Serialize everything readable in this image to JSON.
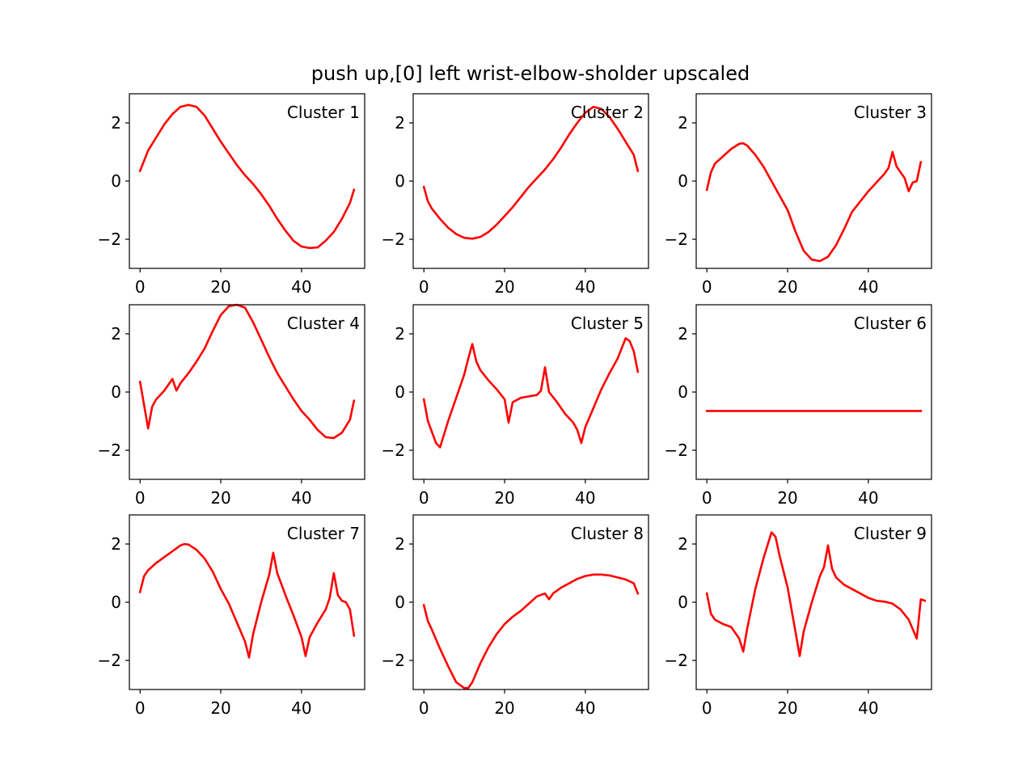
{
  "figure": {
    "title": "push up,[0] left wrist-elbow-sholder upscaled",
    "line_color": "#ff0000"
  },
  "chart_data": [
    {
      "type": "line",
      "label": "Cluster 1",
      "x": [
        0,
        2,
        4,
        6,
        8,
        10,
        12,
        14,
        16,
        18,
        20,
        22,
        24,
        26,
        28,
        30,
        32,
        34,
        36,
        38,
        40,
        42,
        44,
        46,
        48,
        50,
        52,
        53
      ],
      "y": [
        0.35,
        1.05,
        1.5,
        1.95,
        2.3,
        2.55,
        2.62,
        2.55,
        2.25,
        1.8,
        1.35,
        0.95,
        0.55,
        0.2,
        -0.1,
        -0.45,
        -0.85,
        -1.3,
        -1.7,
        -2.05,
        -2.25,
        -2.3,
        -2.28,
        -2.05,
        -1.75,
        -1.3,
        -0.75,
        -0.3
      ],
      "xlim": [
        -2.65,
        55.65
      ],
      "ylim": [
        -3,
        3
      ],
      "xticks": [
        0,
        20,
        40
      ],
      "yticks": [
        -2,
        0,
        2
      ]
    },
    {
      "type": "line",
      "label": "Cluster 2",
      "x": [
        0,
        1,
        2,
        4,
        6,
        8,
        10,
        12,
        14,
        16,
        18,
        20,
        22,
        24,
        26,
        28,
        30,
        32,
        34,
        36,
        38,
        40,
        42,
        44,
        46,
        48,
        50,
        52,
        53
      ],
      "y": [
        -0.2,
        -0.7,
        -0.95,
        -1.3,
        -1.6,
        -1.82,
        -1.95,
        -1.98,
        -1.92,
        -1.75,
        -1.5,
        -1.2,
        -0.9,
        -0.55,
        -0.2,
        0.1,
        0.4,
        0.75,
        1.15,
        1.6,
        2.0,
        2.35,
        2.55,
        2.48,
        2.2,
        1.8,
        1.35,
        0.9,
        0.35
      ],
      "xlim": [
        -2.65,
        55.65
      ],
      "ylim": [
        -3,
        3
      ],
      "xticks": [
        0,
        20,
        40
      ],
      "yticks": [
        -2,
        0,
        2
      ]
    },
    {
      "type": "line",
      "label": "Cluster 3",
      "x": [
        0,
        1,
        2,
        4,
        6,
        8,
        9,
        10,
        12,
        14,
        16,
        18,
        20,
        22,
        24,
        26,
        28,
        30,
        32,
        34,
        36,
        38,
        40,
        42,
        44,
        45,
        46,
        47,
        48,
        49,
        50,
        51,
        52,
        53
      ],
      "y": [
        -0.3,
        0.3,
        0.6,
        0.85,
        1.1,
        1.28,
        1.3,
        1.22,
        0.9,
        0.5,
        0.0,
        -0.5,
        -1.0,
        -1.75,
        -2.4,
        -2.7,
        -2.75,
        -2.6,
        -2.2,
        -1.65,
        -1.05,
        -0.7,
        -0.35,
        -0.05,
        0.25,
        0.45,
        1.0,
        0.5,
        0.3,
        0.1,
        -0.35,
        -0.05,
        0.0,
        0.65
      ],
      "xlim": [
        -2.65,
        55.65
      ],
      "ylim": [
        -3,
        3
      ],
      "xticks": [
        0,
        20,
        40
      ],
      "yticks": [
        -2,
        0,
        2
      ]
    },
    {
      "type": "line",
      "label": "Cluster 4",
      "x": [
        0,
        2,
        3,
        4,
        6,
        8,
        9,
        10,
        12,
        14,
        16,
        18,
        20,
        22,
        24,
        26,
        28,
        30,
        32,
        34,
        36,
        38,
        40,
        42,
        44,
        46,
        48,
        50,
        52,
        53
      ],
      "y": [
        0.35,
        -1.25,
        -0.5,
        -0.25,
        0.05,
        0.45,
        0.05,
        0.3,
        0.65,
        1.05,
        1.5,
        2.1,
        2.65,
        2.95,
        3.0,
        2.9,
        2.4,
        1.8,
        1.2,
        0.65,
        0.2,
        -0.25,
        -0.65,
        -0.95,
        -1.3,
        -1.55,
        -1.58,
        -1.4,
        -0.95,
        -0.3
      ],
      "xlim": [
        -2.65,
        55.65
      ],
      "ylim": [
        -3,
        3
      ],
      "xticks": [
        0,
        20,
        40
      ],
      "yticks": [
        -2,
        0,
        2
      ]
    },
    {
      "type": "line",
      "label": "Cluster 5",
      "x": [
        0,
        1,
        3,
        4,
        6,
        8,
        10,
        11,
        12,
        13,
        14,
        16,
        18,
        20,
        21,
        22,
        24,
        26,
        28,
        29,
        30,
        31,
        33,
        35,
        37,
        38,
        39,
        40,
        42,
        44,
        46,
        48,
        50,
        51,
        52,
        53
      ],
      "y": [
        -0.25,
        -1.0,
        -1.75,
        -1.9,
        -1.0,
        -0.2,
        0.6,
        1.15,
        1.65,
        1.05,
        0.75,
        0.4,
        0.1,
        -0.25,
        -1.05,
        -0.35,
        -0.2,
        -0.15,
        -0.1,
        0.05,
        0.85,
        0.0,
        -0.35,
        -0.75,
        -1.05,
        -1.3,
        -1.75,
        -1.2,
        -0.55,
        0.1,
        0.65,
        1.15,
        1.85,
        1.75,
        1.4,
        0.7
      ],
      "xlim": [
        -2.65,
        55.65
      ],
      "ylim": [
        -3,
        3
      ],
      "xticks": [
        0,
        20,
        40
      ],
      "yticks": [
        -2,
        0,
        2
      ]
    },
    {
      "type": "line",
      "label": "Cluster 6",
      "x": [
        0,
        53
      ],
      "y": [
        -0.65,
        -0.65
      ],
      "xlim": [
        -2.65,
        55.65
      ],
      "ylim": [
        -3,
        3
      ],
      "xticks": [
        0,
        20,
        40
      ],
      "yticks": [
        -2,
        0,
        2
      ]
    },
    {
      "type": "line",
      "label": "Cluster 7",
      "x": [
        0,
        1,
        2,
        4,
        6,
        8,
        10,
        11,
        12,
        14,
        16,
        18,
        20,
        22,
        24,
        26,
        27,
        28,
        30,
        32,
        33,
        34,
        36,
        38,
        40,
        41,
        42,
        44,
        46,
        47,
        48,
        49,
        50,
        51,
        52,
        53
      ],
      "y": [
        0.35,
        0.9,
        1.1,
        1.35,
        1.55,
        1.75,
        1.95,
        2.0,
        1.98,
        1.8,
        1.5,
        1.05,
        0.45,
        -0.05,
        -0.7,
        -1.35,
        -1.9,
        -1.1,
        0.0,
        0.95,
        1.7,
        1.0,
        0.25,
        -0.45,
        -1.2,
        -1.85,
        -1.2,
        -0.7,
        -0.25,
        0.15,
        1.0,
        0.25,
        0.05,
        0.0,
        -0.25,
        -1.15
      ],
      "xlim": [
        -2.65,
        55.65
      ],
      "ylim": [
        -3,
        3
      ],
      "xticks": [
        0,
        20,
        40
      ],
      "yticks": [
        -2,
        0,
        2
      ]
    },
    {
      "type": "line",
      "label": "Cluster 8",
      "x": [
        0,
        1,
        2,
        4,
        6,
        8,
        10,
        11,
        12,
        14,
        16,
        18,
        20,
        22,
        24,
        26,
        28,
        30,
        31,
        32,
        34,
        36,
        38,
        40,
        42,
        44,
        46,
        48,
        50,
        52,
        53
      ],
      "y": [
        -0.1,
        -0.65,
        -0.95,
        -1.6,
        -2.2,
        -2.75,
        -2.95,
        -2.95,
        -2.75,
        -2.1,
        -1.55,
        -1.1,
        -0.75,
        -0.5,
        -0.3,
        -0.05,
        0.2,
        0.3,
        0.1,
        0.3,
        0.5,
        0.65,
        0.8,
        0.9,
        0.95,
        0.95,
        0.92,
        0.85,
        0.78,
        0.65,
        0.3
      ],
      "xlim": [
        -2.65,
        55.65
      ],
      "ylim": [
        -3,
        3
      ],
      "xticks": [
        0,
        20,
        40
      ],
      "yticks": [
        -2,
        0,
        2
      ]
    },
    {
      "type": "line",
      "label": "Cluster 9",
      "x": [
        0,
        1,
        2,
        4,
        6,
        8,
        9,
        10,
        12,
        14,
        16,
        17,
        18,
        20,
        22,
        23,
        24,
        26,
        28,
        29,
        30,
        31,
        32,
        34,
        36,
        38,
        40,
        42,
        44,
        46,
        48,
        50,
        52,
        53,
        54
      ],
      "y": [
        0.3,
        -0.4,
        -0.6,
        -0.75,
        -0.85,
        -1.25,
        -1.7,
        -0.9,
        0.45,
        1.5,
        2.4,
        2.25,
        1.6,
        0.5,
        -1.05,
        -1.85,
        -1.0,
        0.0,
        0.9,
        1.2,
        1.95,
        1.15,
        0.85,
        0.6,
        0.45,
        0.3,
        0.15,
        0.05,
        0.02,
        -0.05,
        -0.25,
        -0.6,
        -1.25,
        0.1,
        0.05
      ],
      "xlim": [
        -2.65,
        55.65
      ],
      "ylim": [
        -3,
        3
      ],
      "xticks": [
        0,
        20,
        40
      ],
      "yticks": [
        -2,
        0,
        2
      ]
    }
  ]
}
